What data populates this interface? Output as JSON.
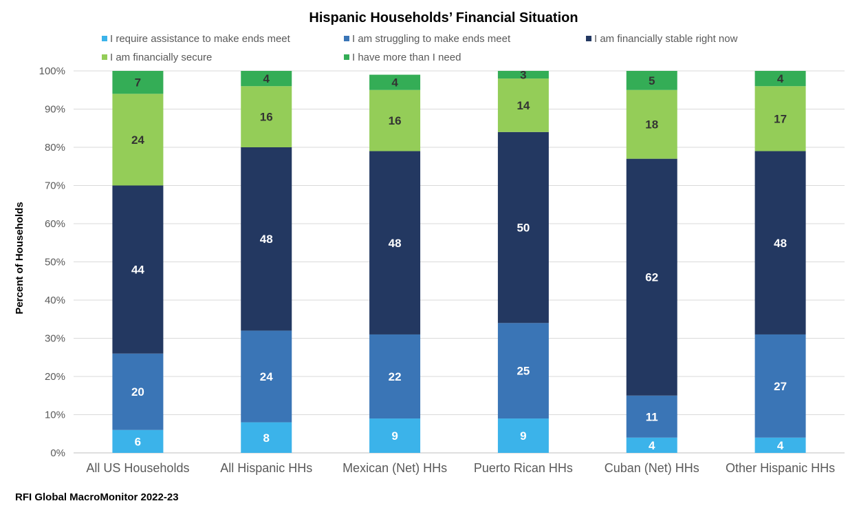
{
  "chart_data": {
    "type": "bar",
    "stacked": true,
    "title": "Hispanic Households’ Financial Situation",
    "ylabel": "Percent of Households",
    "xlabel": "",
    "ylim": [
      0,
      100
    ],
    "yticks": [
      "0%",
      "10%",
      "20%",
      "30%",
      "40%",
      "50%",
      "60%",
      "70%",
      "80%",
      "90%",
      "100%"
    ],
    "grid": true,
    "legend_position": "top",
    "categories": [
      "All US Households",
      "All Hispanic HHs",
      "Mexican (Net) HHs",
      "Puerto Rican HHs",
      "Cuban (Net) HHs",
      "Other Hispanic HHs"
    ],
    "series": [
      {
        "name": "I require assistance to make ends meet",
        "color": "#3bb3ea",
        "label_color": "#ffffff",
        "values": [
          6,
          8,
          9,
          9,
          4,
          4
        ]
      },
      {
        "name": "I am struggling to make ends meet",
        "color": "#3a75b6",
        "label_color": "#ffffff",
        "values": [
          20,
          24,
          22,
          25,
          11,
          27
        ]
      },
      {
        "name": "I am financially stable right now",
        "color": "#233861",
        "label_color": "#ffffff",
        "values": [
          44,
          48,
          48,
          50,
          62,
          48
        ]
      },
      {
        "name": "I am financially secure",
        "color": "#94cd58",
        "label_color": "#333333",
        "values": [
          24,
          16,
          16,
          14,
          18,
          17
        ]
      },
      {
        "name": "I have more than I need",
        "color": "#34ad56",
        "label_color": "#333333",
        "values": [
          7,
          4,
          4,
          3,
          5,
          4
        ]
      }
    ],
    "source": "RFI Global MacroMonitor 2022-23"
  }
}
